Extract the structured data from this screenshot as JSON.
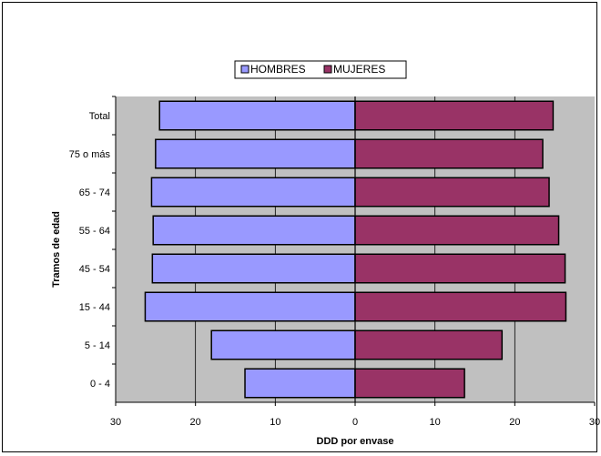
{
  "chart_data": {
    "type": "bar",
    "orientation": "horizontal",
    "layout": "population-pyramid",
    "categories": [
      "Total",
      "75 o más",
      "65 - 74",
      "55 - 64",
      "45 - 54",
      "15 - 44",
      "5 - 14",
      "0 - 4"
    ],
    "series": [
      {
        "name": "HOMBRES",
        "color": "#9999ff",
        "side": "left",
        "values": [
          24.5,
          25.0,
          25.5,
          25.3,
          25.4,
          26.3,
          18.0,
          13.8
        ]
      },
      {
        "name": "MUJERES",
        "color": "#993366",
        "side": "right",
        "values": [
          24.8,
          23.5,
          24.3,
          25.5,
          26.3,
          26.4,
          18.4,
          13.7
        ]
      }
    ],
    "xlabel": "DDD por envase",
    "ylabel": "Tramos de edad",
    "xlim": [
      -30,
      30
    ],
    "x_ticks": [
      -30,
      -20,
      -10,
      0,
      10,
      20,
      30
    ],
    "x_tick_labels": [
      "30",
      "20",
      "10",
      "0",
      "10",
      "20",
      "30"
    ],
    "grid": "vertical",
    "legend_position": "top-center",
    "plot_background": "#c0c0c0"
  }
}
